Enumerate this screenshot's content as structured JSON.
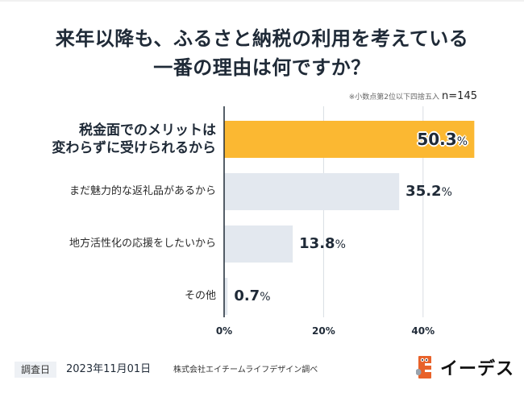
{
  "title": {
    "line1": "来年以降も、ふるさと納税の利用を考えている",
    "line2": "一番の理由は何ですか？"
  },
  "note": {
    "rounding": "※小数点第2位以下四捨五入",
    "sample": "n=145"
  },
  "colors": {
    "highlight": "#fbb832",
    "bar": "#e3e8ef",
    "axis": "#1f2a37",
    "grid": "#d9dde3",
    "logo_orange": "#e8622a"
  },
  "chart_data": {
    "type": "bar",
    "orientation": "horizontal",
    "title": "来年以降も、ふるさと納税の利用を考えている一番の理由は何ですか？",
    "categories": [
      "税金面でのメリットは\n変わらずに受けられるから",
      "まだ魅力的な返礼品があるから",
      "地方活性化の応援をしたいから",
      "その他"
    ],
    "values": [
      50.3,
      35.2,
      13.8,
      0.7
    ],
    "value_labels": [
      "50.3",
      "35.2",
      "13.8",
      "0.7"
    ],
    "value_suffix": "%",
    "highlight_index": 0,
    "xlim": [
      0,
      50.3
    ],
    "xticks": [
      0,
      20,
      40
    ],
    "xtick_labels": [
      "0%",
      "20%",
      "40%"
    ],
    "grid": true,
    "xlabel": "",
    "ylabel": ""
  },
  "footer": {
    "badge": "調査日",
    "date": "2023年11月01日",
    "source": "株式会社エイチームライフデザイン調べ",
    "logo_text": "イーデス"
  }
}
